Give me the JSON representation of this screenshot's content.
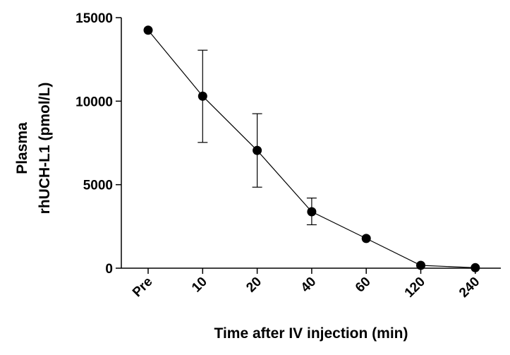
{
  "chart_data": {
    "type": "line",
    "title": "",
    "xlabel": "Time after IV injection (min)",
    "ylabel_lines": [
      "Plasma",
      "rhUCH-L1 (pmol/L)"
    ],
    "categories": [
      "Pre",
      "10",
      "20",
      "40",
      "60",
      "120",
      "240"
    ],
    "series": [
      {
        "values": [
          14250,
          10300,
          7050,
          3380,
          1780,
          170,
          30
        ],
        "error_upper": [
          14250,
          13050,
          9250,
          4200,
          1780,
          170,
          30
        ],
        "error_lower": [
          14250,
          7530,
          4850,
          2600,
          1780,
          170,
          30
        ]
      }
    ],
    "yticks": [
      0,
      5000,
      10000,
      15000
    ],
    "ylim": [
      0,
      15000
    ],
    "grid": false,
    "legend": "none",
    "colors": {
      "line": "#000000",
      "marker": "#000000",
      "axis": "#000000"
    }
  }
}
